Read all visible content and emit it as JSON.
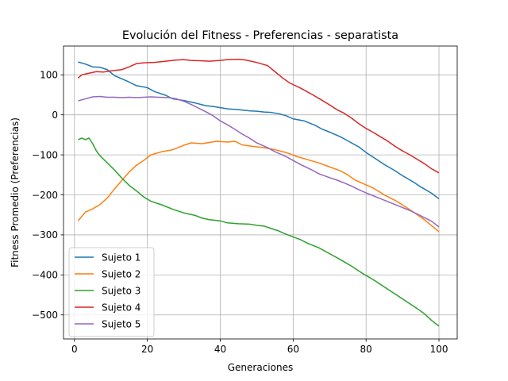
{
  "chart_data": {
    "type": "line",
    "title": "Evolución del Fitness - Preferencias - separatista",
    "xlabel": "Generaciones",
    "ylabel": "Fitness Promedio (Preferencias)",
    "xlim": [
      -3,
      105
    ],
    "ylim": [
      -560,
      172
    ],
    "xticks": [
      0,
      20,
      40,
      60,
      80,
      100
    ],
    "yticks": [
      -500,
      -400,
      -300,
      -200,
      -100,
      0,
      100
    ],
    "grid": true,
    "legend_position": "lower-left",
    "series": [
      {
        "name": "Sujeto 1",
        "color": "#1f77b4",
        "points": [
          [
            1,
            132
          ],
          [
            3,
            127
          ],
          [
            5,
            120
          ],
          [
            7,
            119
          ],
          [
            9,
            113
          ],
          [
            11,
            98
          ],
          [
            13,
            90
          ],
          [
            15,
            82
          ],
          [
            17,
            73
          ],
          [
            20,
            68
          ],
          [
            22,
            58
          ],
          [
            25,
            49
          ],
          [
            27,
            40
          ],
          [
            30,
            36
          ],
          [
            33,
            30
          ],
          [
            36,
            23
          ],
          [
            38,
            21
          ],
          [
            40,
            18
          ],
          [
            42,
            15
          ],
          [
            45,
            13
          ],
          [
            48,
            10
          ],
          [
            50,
            9
          ],
          [
            52,
            7
          ],
          [
            54,
            6
          ],
          [
            56,
            3
          ],
          [
            58,
            -2
          ],
          [
            60,
            -10
          ],
          [
            63,
            -15
          ],
          [
            66,
            -26
          ],
          [
            68,
            -36
          ],
          [
            70,
            -43
          ],
          [
            73,
            -55
          ],
          [
            75,
            -65
          ],
          [
            78,
            -80
          ],
          [
            80,
            -94
          ],
          [
            82,
            -106
          ],
          [
            85,
            -124
          ],
          [
            88,
            -140
          ],
          [
            90,
            -152
          ],
          [
            93,
            -168
          ],
          [
            95,
            -180
          ],
          [
            98,
            -196
          ],
          [
            100,
            -210
          ]
        ]
      },
      {
        "name": "Sujeto 2",
        "color": "#ff7f0e",
        "points": [
          [
            1,
            -265
          ],
          [
            3,
            -243
          ],
          [
            5,
            -235
          ],
          [
            7,
            -224
          ],
          [
            9,
            -208
          ],
          [
            11,
            -185
          ],
          [
            13,
            -164
          ],
          [
            15,
            -143
          ],
          [
            17,
            -126
          ],
          [
            19,
            -114
          ],
          [
            21,
            -100
          ],
          [
            24,
            -92
          ],
          [
            27,
            -87
          ],
          [
            30,
            -76
          ],
          [
            32,
            -70
          ],
          [
            35,
            -72
          ],
          [
            37,
            -69
          ],
          [
            39,
            -66
          ],
          [
            42,
            -68
          ],
          [
            44,
            -66
          ],
          [
            46,
            -75
          ],
          [
            49,
            -79
          ],
          [
            52,
            -82
          ],
          [
            55,
            -87
          ],
          [
            58,
            -94
          ],
          [
            61,
            -104
          ],
          [
            64,
            -112
          ],
          [
            67,
            -120
          ],
          [
            70,
            -130
          ],
          [
            73,
            -140
          ],
          [
            75,
            -150
          ],
          [
            77,
            -163
          ],
          [
            80,
            -175
          ],
          [
            82,
            -183
          ],
          [
            85,
            -200
          ],
          [
            88,
            -214
          ],
          [
            90,
            -225
          ],
          [
            93,
            -243
          ],
          [
            96,
            -262
          ],
          [
            98,
            -277
          ],
          [
            100,
            -292
          ]
        ]
      },
      {
        "name": "Sujeto 3",
        "color": "#2ca02c",
        "points": [
          [
            1,
            -62
          ],
          [
            2,
            -58
          ],
          [
            3,
            -62
          ],
          [
            4,
            -58
          ],
          [
            5,
            -72
          ],
          [
            6,
            -90
          ],
          [
            7,
            -102
          ],
          [
            9,
            -120
          ],
          [
            11,
            -138
          ],
          [
            13,
            -158
          ],
          [
            15,
            -176
          ],
          [
            17,
            -190
          ],
          [
            19,
            -205
          ],
          [
            21,
            -216
          ],
          [
            24,
            -225
          ],
          [
            27,
            -236
          ],
          [
            30,
            -245
          ],
          [
            33,
            -251
          ],
          [
            35,
            -258
          ],
          [
            37,
            -262
          ],
          [
            40,
            -265
          ],
          [
            42,
            -270
          ],
          [
            45,
            -272
          ],
          [
            48,
            -273
          ],
          [
            50,
            -276
          ],
          [
            52,
            -278
          ],
          [
            54,
            -284
          ],
          [
            56,
            -290
          ],
          [
            58,
            -298
          ],
          [
            60,
            -305
          ],
          [
            62,
            -312
          ],
          [
            64,
            -321
          ],
          [
            67,
            -332
          ],
          [
            70,
            -347
          ],
          [
            73,
            -362
          ],
          [
            76,
            -378
          ],
          [
            79,
            -396
          ],
          [
            82,
            -412
          ],
          [
            85,
            -430
          ],
          [
            88,
            -448
          ],
          [
            91,
            -466
          ],
          [
            94,
            -484
          ],
          [
            96,
            -497
          ],
          [
            98,
            -514
          ],
          [
            100,
            -528
          ]
        ]
      },
      {
        "name": "Sujeto 4",
        "color": "#d62728",
        "points": [
          [
            1,
            92
          ],
          [
            2,
            100
          ],
          [
            4,
            104
          ],
          [
            6,
            108
          ],
          [
            8,
            107
          ],
          [
            10,
            110
          ],
          [
            13,
            113
          ],
          [
            15,
            120
          ],
          [
            17,
            128
          ],
          [
            19,
            130
          ],
          [
            22,
            131
          ],
          [
            25,
            134
          ],
          [
            28,
            137
          ],
          [
            30,
            138
          ],
          [
            32,
            136
          ],
          [
            35,
            135
          ],
          [
            37,
            134
          ],
          [
            40,
            136
          ],
          [
            42,
            138
          ],
          [
            45,
            139
          ],
          [
            47,
            137
          ],
          [
            50,
            131
          ],
          [
            53,
            123
          ],
          [
            55,
            108
          ],
          [
            57,
            93
          ],
          [
            59,
            80
          ],
          [
            62,
            67
          ],
          [
            65,
            52
          ],
          [
            68,
            36
          ],
          [
            70,
            25
          ],
          [
            72,
            13
          ],
          [
            74,
            4
          ],
          [
            76,
            -8
          ],
          [
            78,
            -22
          ],
          [
            80,
            -34
          ],
          [
            82,
            -44
          ],
          [
            84,
            -55
          ],
          [
            86,
            -66
          ],
          [
            88,
            -79
          ],
          [
            90,
            -90
          ],
          [
            92,
            -100
          ],
          [
            94,
            -111
          ],
          [
            96,
            -122
          ],
          [
            98,
            -135
          ],
          [
            100,
            -145
          ]
        ]
      },
      {
        "name": "Sujeto 5",
        "color": "#9467bd",
        "points": [
          [
            1,
            35
          ],
          [
            3,
            40
          ],
          [
            5,
            45
          ],
          [
            7,
            46
          ],
          [
            9,
            44
          ],
          [
            11,
            44
          ],
          [
            13,
            43
          ],
          [
            15,
            44
          ],
          [
            17,
            43
          ],
          [
            19,
            44
          ],
          [
            21,
            45
          ],
          [
            23,
            44
          ],
          [
            26,
            43
          ],
          [
            28,
            40
          ],
          [
            30,
            34
          ],
          [
            32,
            26
          ],
          [
            34,
            17
          ],
          [
            36,
            8
          ],
          [
            38,
            -2
          ],
          [
            40,
            -15
          ],
          [
            42,
            -25
          ],
          [
            44,
            -36
          ],
          [
            46,
            -48
          ],
          [
            48,
            -58
          ],
          [
            50,
            -70
          ],
          [
            53,
            -82
          ],
          [
            55,
            -92
          ],
          [
            58,
            -104
          ],
          [
            60,
            -114
          ],
          [
            62,
            -124
          ],
          [
            65,
            -137
          ],
          [
            67,
            -147
          ],
          [
            70,
            -157
          ],
          [
            72,
            -163
          ],
          [
            74,
            -170
          ],
          [
            76,
            -178
          ],
          [
            78,
            -187
          ],
          [
            80,
            -195
          ],
          [
            83,
            -206
          ],
          [
            86,
            -217
          ],
          [
            89,
            -228
          ],
          [
            92,
            -239
          ],
          [
            95,
            -252
          ],
          [
            98,
            -266
          ],
          [
            100,
            -280
          ]
        ]
      }
    ]
  }
}
